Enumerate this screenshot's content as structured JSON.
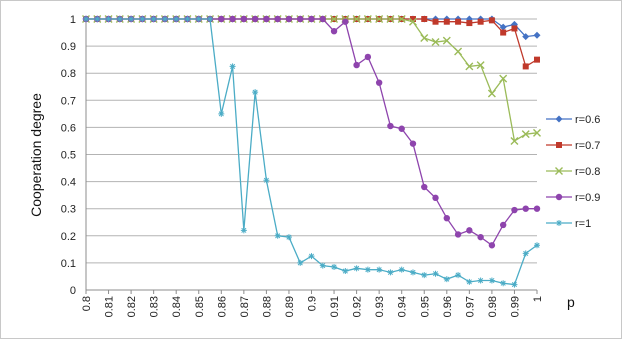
{
  "chart_data": {
    "type": "line",
    "title": "",
    "xlabel": "p",
    "ylabel": "Cooperation degree",
    "ylim": [
      0,
      1
    ],
    "yticks": [
      "0",
      "0.1",
      "0.2",
      "0.3",
      "0.4",
      "0.5",
      "0.6",
      "0.7",
      "0.8",
      "0.9",
      "1"
    ],
    "categories": [
      "0.8",
      "0.805",
      "0.81",
      "0.815",
      "0.82",
      "0.825",
      "0.83",
      "0.835",
      "0.84",
      "0.845",
      "0.85",
      "0.855",
      "0.86",
      "0.865",
      "0.87",
      "0.875",
      "0.88",
      "0.885",
      "0.89",
      "0.895",
      "0.9",
      "0.905",
      "0.91",
      "0.915",
      "0.92",
      "0.925",
      "0.93",
      "0.935",
      "0.94",
      "0.945",
      "0.95",
      "0.955",
      "0.96",
      "0.965",
      "0.97",
      "0.975",
      "0.98",
      "0.985",
      "0.99",
      "0.995",
      "1"
    ],
    "tick_labels": [
      "0.8",
      "0.81",
      "0.82",
      "0.83",
      "0.84",
      "0.85",
      "0.86",
      "0.87",
      "0.88",
      "0.89",
      "0.9",
      "0.91",
      "0.92",
      "0.93",
      "0.94",
      "0.95",
      "0.96",
      "0.97",
      "0.98",
      "0.99",
      "1"
    ],
    "grid": "horizontal",
    "legend": "right",
    "series": [
      {
        "name": "r=0.6",
        "color": "#4472C4",
        "marker": "diamond",
        "values": [
          1,
          1,
          1,
          1,
          1,
          1,
          1,
          1,
          1,
          1,
          1,
          1,
          1,
          1,
          1,
          1,
          1,
          1,
          1,
          1,
          1,
          1,
          1,
          1,
          1,
          1,
          1,
          1,
          1,
          1,
          1,
          1,
          1,
          1,
          1,
          1,
          1,
          0.97,
          0.98,
          0.935,
          0.94
        ]
      },
      {
        "name": "r=0.7",
        "color": "#C0392B",
        "marker": "square",
        "values": [
          1,
          1,
          1,
          1,
          1,
          1,
          1,
          1,
          1,
          1,
          1,
          1,
          1,
          1,
          1,
          1,
          1,
          1,
          1,
          1,
          1,
          1,
          1,
          1,
          1,
          1,
          1,
          1,
          1,
          1,
          1,
          0.99,
          0.99,
          0.99,
          0.985,
          0.99,
          0.995,
          0.95,
          0.965,
          0.825,
          0.85
        ]
      },
      {
        "name": "r=0.8",
        "color": "#9BBB59",
        "marker": "x",
        "values": [
          1,
          1,
          1,
          1,
          1,
          1,
          1,
          1,
          1,
          1,
          1,
          1,
          1,
          1,
          1,
          1,
          1,
          1,
          1,
          1,
          1,
          1,
          1,
          1,
          1,
          1,
          1,
          1,
          1,
          0.99,
          0.93,
          0.915,
          0.92,
          0.88,
          0.825,
          0.83,
          0.725,
          0.78,
          0.55,
          0.575,
          0.58
        ]
      },
      {
        "name": "r=0.9",
        "color": "#8E44AD",
        "marker": "circle",
        "values": [
          1,
          1,
          1,
          1,
          1,
          1,
          1,
          1,
          1,
          1,
          1,
          1,
          1,
          1,
          1,
          1,
          1,
          1,
          1,
          1,
          1,
          1,
          0.955,
          0.99,
          0.83,
          0.86,
          0.765,
          0.605,
          0.595,
          0.54,
          0.38,
          0.34,
          0.265,
          0.205,
          0.22,
          0.195,
          0.165,
          0.24,
          0.295,
          0.3,
          0.3
        ]
      },
      {
        "name": "r=1",
        "color": "#4BACC6",
        "marker": "star",
        "values": [
          1,
          1,
          1,
          1,
          1,
          1,
          1,
          1,
          1,
          1,
          1,
          1,
          0.65,
          0.825,
          0.22,
          0.73,
          0.405,
          0.2,
          0.195,
          0.1,
          0.125,
          0.09,
          0.085,
          0.07,
          0.08,
          0.075,
          0.075,
          0.065,
          0.075,
          0.065,
          0.055,
          0.06,
          0.04,
          0.055,
          0.03,
          0.035,
          0.035,
          0.025,
          0.02,
          0.135,
          0.165
        ]
      }
    ]
  }
}
